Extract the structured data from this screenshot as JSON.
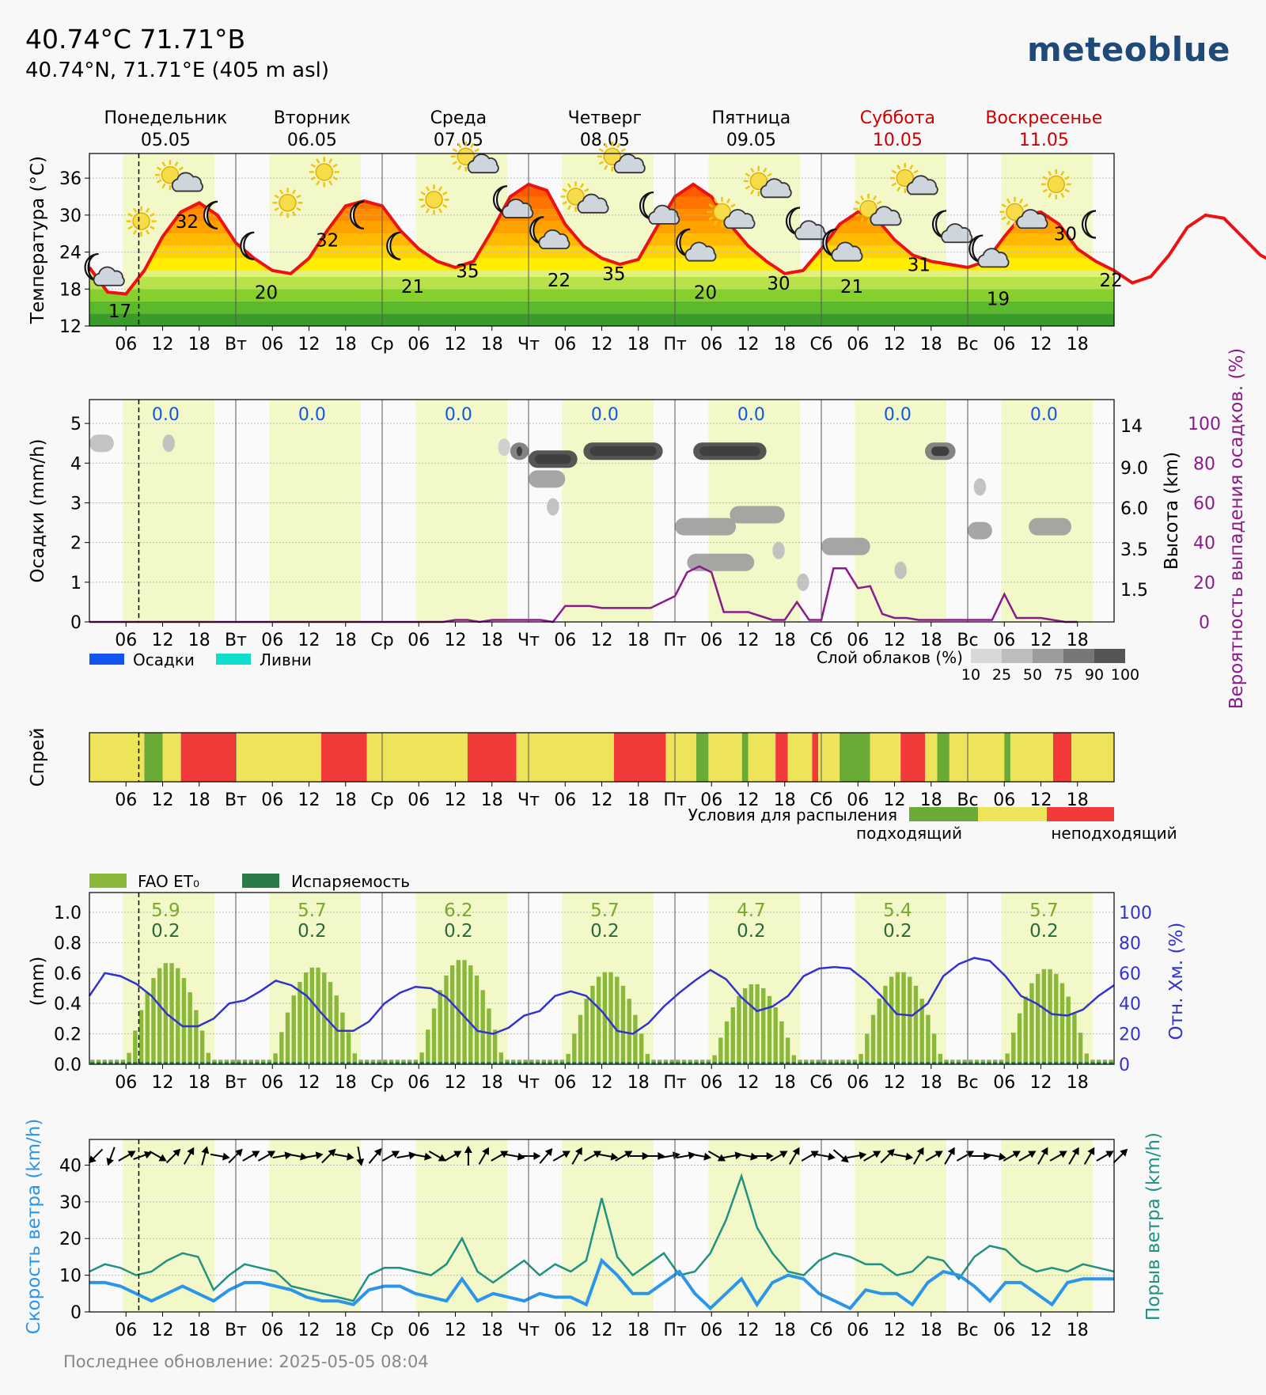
{
  "header": {
    "title": "40.74°C 71.71°B",
    "subtitle": "40.74°N, 71.71°E (405 m asl)",
    "logo": "meteoblue",
    "last_updated": "Последнее обновление: 2025-05-05 08:04"
  },
  "days": [
    {
      "name": "Понедельник",
      "date": "05.05",
      "weekend": false
    },
    {
      "name": "Вторник",
      "date": "06.05",
      "weekend": false
    },
    {
      "name": "Среда",
      "date": "07.05",
      "weekend": false
    },
    {
      "name": "Четверг",
      "date": "08.05",
      "weekend": false
    },
    {
      "name": "Пятница",
      "date": "09.05",
      "weekend": false
    },
    {
      "name": "Суббота",
      "date": "10.05",
      "weekend": true
    },
    {
      "name": "Воскресенье",
      "date": "11.05",
      "weekend": true
    }
  ],
  "time_axis": {
    "hour_ticks": [
      "06",
      "12",
      "18"
    ],
    "day_abbr": [
      "Вт",
      "Ср",
      "Чт",
      "Пт",
      "Сб",
      "Вс"
    ]
  },
  "colors": {
    "temperature": "#ee1111",
    "precip_prob": "#8b1a8b",
    "precipitation": "#1155ee",
    "showers": "#11ddcc",
    "fao": "#8ab83a",
    "evap": "#2a7a4a",
    "humidity": "#3333cc",
    "wind": "#2b95ea",
    "gust": "#1f9282",
    "spray_good": "#6aab38",
    "spray_mid": "#eee45a",
    "spray_bad": "#f23a3a",
    "weekend": "#cc0000"
  },
  "chart_data": [
    {
      "id": "temperature",
      "type": "area",
      "ylabel": "Температура (°C)",
      "ylim": [
        12,
        40
      ],
      "yticks": [
        12,
        18,
        24,
        30,
        36
      ],
      "x_start_hour": 0,
      "step_hours": 3,
      "values": [
        21.5,
        17.5,
        17.2,
        21,
        26.5,
        30.5,
        32,
        30,
        25.5,
        23,
        21,
        20.5,
        23,
        27.5,
        31.5,
        32.3,
        31.5,
        27.5,
        24.5,
        22.5,
        21.5,
        22.5,
        27.5,
        33,
        35,
        34,
        28.5,
        25,
        23,
        22,
        22.8,
        28,
        33,
        35,
        33,
        28.5,
        25,
        22.5,
        20.5,
        21,
        24.5,
        28.5,
        30.5,
        29.5,
        26,
        23.5,
        22.5,
        22,
        21.5,
        22.5,
        26.5,
        30,
        30.5,
        28.5,
        24.5,
        22.5,
        21,
        19,
        20,
        23.5,
        28,
        30,
        29.5,
        26.5,
        23.5,
        22
      ],
      "min_labels": [
        {
          "day": 0,
          "hour": 5,
          "value": "17"
        },
        {
          "day": 1,
          "hour": 5,
          "value": "20"
        },
        {
          "day": 2,
          "hour": 5,
          "value": "21"
        },
        {
          "day": 3,
          "hour": 5,
          "value": "22"
        },
        {
          "day": 4,
          "hour": 5,
          "value": "20"
        },
        {
          "day": 5,
          "hour": 5,
          "value": "21"
        },
        {
          "day": 6,
          "hour": 5,
          "value": "19"
        },
        {
          "day": 6,
          "hour": 23.5,
          "value": "22"
        }
      ],
      "max_labels": [
        {
          "day": 0,
          "hour": 16,
          "value": "32"
        },
        {
          "day": 1,
          "hour": 15,
          "value": "32"
        },
        {
          "day": 2,
          "hour": 14,
          "value": "35"
        },
        {
          "day": 3,
          "hour": 14,
          "value": "35"
        },
        {
          "day": 4,
          "hour": 17,
          "value": "30"
        },
        {
          "day": 5,
          "hour": 16,
          "value": "31"
        },
        {
          "day": 6,
          "hour": 16,
          "value": "30"
        }
      ],
      "icons": [
        {
          "name": "moon-cloud-icon",
          "day": 0,
          "hour": 1.5,
          "value": 21
        },
        {
          "name": "sun-icon",
          "day": 0,
          "hour": 8.5,
          "value": 29
        },
        {
          "name": "sun-cloud-icon",
          "day": 0,
          "hour": 14,
          "value": 36
        },
        {
          "name": "moon-icon",
          "day": 0,
          "hour": 20.5,
          "value": 30
        },
        {
          "name": "moon-icon",
          "day": 1,
          "hour": 2.5,
          "value": 25
        },
        {
          "name": "sun-icon",
          "day": 1,
          "hour": 8.5,
          "value": 32
        },
        {
          "name": "sun-icon",
          "day": 1,
          "hour": 14.5,
          "value": 37
        },
        {
          "name": "moon-icon",
          "day": 1,
          "hour": 20.5,
          "value": 30
        },
        {
          "name": "moon-icon",
          "day": 2,
          "hour": 2.5,
          "value": 25
        },
        {
          "name": "sun-icon",
          "day": 2,
          "hour": 8.5,
          "value": 32.5
        },
        {
          "name": "sun-cloud-icon",
          "day": 2,
          "hour": 14.5,
          "value": 39
        },
        {
          "name": "moon-cloud-icon",
          "day": 2,
          "hour": 20.5,
          "value": 32
        },
        {
          "name": "moon-cloud-icon",
          "day": 3,
          "hour": 2.5,
          "value": 27
        },
        {
          "name": "sun-cloud-icon",
          "day": 3,
          "hour": 8.5,
          "value": 32.5
        },
        {
          "name": "sun-cloud-icon",
          "day": 3,
          "hour": 14.5,
          "value": 39
        },
        {
          "name": "moon-cloud-icon",
          "day": 3,
          "hour": 20.5,
          "value": 31
        },
        {
          "name": "moon-cloud-icon",
          "day": 4,
          "hour": 2.5,
          "value": 25
        },
        {
          "name": "sun-cloud-icon",
          "day": 4,
          "hour": 8.5,
          "value": 30
        },
        {
          "name": "sun-cloud-icon",
          "day": 4,
          "hour": 14.5,
          "value": 35
        },
        {
          "name": "moon-cloud-icon",
          "day": 4,
          "hour": 20.5,
          "value": 28.5
        },
        {
          "name": "moon-cloud-icon",
          "day": 5,
          "hour": 2.5,
          "value": 25
        },
        {
          "name": "sun-cloud-icon",
          "day": 5,
          "hour": 8.5,
          "value": 30.5
        },
        {
          "name": "sun-cloud-icon",
          "day": 5,
          "hour": 14.5,
          "value": 35.5
        },
        {
          "name": "moon-cloud-icon",
          "day": 5,
          "hour": 20.5,
          "value": 28
        },
        {
          "name": "moon-cloud-icon",
          "day": 6,
          "hour": 2.5,
          "value": 24
        },
        {
          "name": "sun-cloud-icon",
          "day": 6,
          "hour": 8.5,
          "value": 30
        },
        {
          "name": "sun-icon",
          "day": 6,
          "hour": 14.5,
          "value": 35
        },
        {
          "name": "moon-icon",
          "day": 6,
          "hour": 20.5,
          "value": 28.5
        }
      ]
    },
    {
      "id": "precipitation",
      "type": "line",
      "ylabel": "Осадки (mm/h)",
      "ylim": [
        0,
        5.6
      ],
      "yticks": [
        0,
        1,
        2,
        3,
        4,
        5
      ],
      "height_label": "Высота (km)",
      "height_ticks": [
        "1.5",
        "3.5",
        "6.0",
        "9.0",
        "14"
      ],
      "prob_label": "Вероятность выпадения осадков. (%)",
      "prob_ticks": [
        0,
        20,
        40,
        60,
        80,
        100
      ],
      "daily_totals": [
        "0.0",
        "0.0",
        "0.0",
        "0.0",
        "0.0",
        "0.0",
        "0.0"
      ],
      "legend": {
        "precip": "Осадки",
        "showers": "Ливни"
      },
      "cloud_legend_title": "Слой облаков (%)",
      "cloud_legend_ticks": [
        "10",
        "25",
        "50",
        "75",
        "90",
        "100"
      ],
      "cloud_layers": [
        {
          "day": 0,
          "h0": 0,
          "h1": 4,
          "level": 4.5,
          "cover": 25
        },
        {
          "day": 0,
          "h0": 12,
          "h1": 14,
          "level": 4.5,
          "cover": 25
        },
        {
          "day": 2,
          "h0": 19,
          "h1": 21,
          "level": 4.4,
          "cover": 15
        },
        {
          "day": 2,
          "h0": 21,
          "h1": 24,
          "level": 4.3,
          "cover": 75
        },
        {
          "day": 3,
          "h0": 0,
          "h1": 8,
          "level": 4.1,
          "cover": 100
        },
        {
          "day": 3,
          "h0": 0,
          "h1": 6,
          "level": 3.6,
          "cover": 50
        },
        {
          "day": 3,
          "h0": 9,
          "h1": 22,
          "level": 4.3,
          "cover": 100
        },
        {
          "day": 3,
          "h0": 3,
          "h1": 5,
          "level": 2.9,
          "cover": 25
        },
        {
          "day": 4,
          "h0": 3,
          "h1": 15,
          "level": 4.3,
          "cover": 100
        },
        {
          "day": 4,
          "h0": 0,
          "h1": 10,
          "level": 2.4,
          "cover": 50
        },
        {
          "day": 4,
          "h0": 9,
          "h1": 18,
          "level": 2.7,
          "cover": 50
        },
        {
          "day": 4,
          "h0": 2,
          "h1": 13,
          "level": 1.5,
          "cover": 50
        },
        {
          "day": 4,
          "h0": 16,
          "h1": 18,
          "level": 1.8,
          "cover": 25
        },
        {
          "day": 4,
          "h0": 20,
          "h1": 22,
          "level": 1.0,
          "cover": 25
        },
        {
          "day": 5,
          "h0": 0,
          "h1": 8,
          "level": 1.9,
          "cover": 50
        },
        {
          "day": 5,
          "h0": 12,
          "h1": 14,
          "level": 1.3,
          "cover": 25
        },
        {
          "day": 5,
          "h0": 17,
          "h1": 22,
          "level": 4.3,
          "cover": 75
        },
        {
          "day": 6,
          "h0": 0,
          "h1": 4,
          "level": 2.3,
          "cover": 50
        },
        {
          "day": 6,
          "h0": 1,
          "h1": 3,
          "level": 3.4,
          "cover": 25
        },
        {
          "day": 6,
          "h0": 10,
          "h1": 17,
          "level": 2.4,
          "cover": 50
        }
      ],
      "prob_x_start_hour": 0,
      "prob_step_hours": 3,
      "prob_values": [
        0,
        0,
        0,
        0,
        0,
        0,
        0,
        0,
        0,
        0,
        0,
        0,
        0,
        0,
        0,
        0,
        0,
        0,
        0,
        0,
        0,
        0,
        0,
        0,
        0,
        0,
        0,
        0,
        0,
        0,
        1,
        1,
        0,
        1,
        1,
        1,
        1,
        1,
        0,
        8,
        8,
        8,
        7,
        7,
        7,
        7,
        7,
        10,
        13,
        25,
        28,
        25,
        5,
        5,
        5,
        3,
        1,
        1,
        10,
        1,
        1,
        27,
        27,
        17,
        18,
        4,
        2,
        2,
        1,
        1,
        1,
        1,
        1,
        1,
        1,
        14,
        2,
        2,
        2,
        1,
        0,
        0
      ]
    },
    {
      "id": "spray",
      "type": "heatmap",
      "ylabel": "Спрей",
      "legend_title": "Условия для распыления",
      "legend_good": "подходящий",
      "legend_bad": "неподходящий",
      "segments": [
        {
          "from": 0,
          "to": 9,
          "rating": "mid"
        },
        {
          "from": 9,
          "to": 12,
          "rating": "good"
        },
        {
          "from": 12,
          "to": 15,
          "rating": "mid"
        },
        {
          "from": 15,
          "to": 24,
          "rating": "bad"
        },
        {
          "from": 24,
          "to": 38,
          "rating": "mid"
        },
        {
          "from": 38,
          "to": 45.5,
          "rating": "bad"
        },
        {
          "from": 45.5,
          "to": 62,
          "rating": "mid"
        },
        {
          "from": 62,
          "to": 70,
          "rating": "bad"
        },
        {
          "from": 70,
          "to": 86,
          "rating": "mid"
        },
        {
          "from": 86,
          "to": 94.5,
          "rating": "bad"
        },
        {
          "from": 94.5,
          "to": 99.5,
          "rating": "mid"
        },
        {
          "from": 99.5,
          "to": 101.5,
          "rating": "good"
        },
        {
          "from": 101.5,
          "to": 107,
          "rating": "mid"
        },
        {
          "from": 107,
          "to": 108,
          "rating": "good"
        },
        {
          "from": 108,
          "to": 112.5,
          "rating": "mid"
        },
        {
          "from": 112.5,
          "to": 114.5,
          "rating": "bad"
        },
        {
          "from": 114.5,
          "to": 118.5,
          "rating": "mid"
        },
        {
          "from": 118.5,
          "to": 119.5,
          "rating": "bad"
        },
        {
          "from": 119.5,
          "to": 123,
          "rating": "mid"
        },
        {
          "from": 123,
          "to": 128,
          "rating": "good"
        },
        {
          "from": 128,
          "to": 133,
          "rating": "mid"
        },
        {
          "from": 133,
          "to": 137,
          "rating": "bad"
        },
        {
          "from": 137,
          "to": 139,
          "rating": "mid"
        },
        {
          "from": 139,
          "to": 141,
          "rating": "good"
        },
        {
          "from": 141,
          "to": 150,
          "rating": "mid"
        },
        {
          "from": 150,
          "to": 151,
          "rating": "good"
        },
        {
          "from": 151,
          "to": 158,
          "rating": "mid"
        },
        {
          "from": 158,
          "to": 161,
          "rating": "bad"
        },
        {
          "from": 161,
          "to": 168,
          "rating": "mid"
        }
      ]
    },
    {
      "id": "evapotranspiration",
      "type": "bar",
      "ylabel": "(mm)",
      "ylim": [
        0,
        1.0
      ],
      "yticks": [
        "0.0",
        "0.2",
        "0.4",
        "0.6",
        "0.8",
        "1.0"
      ],
      "rh_label": "Отн. Хм. (%)",
      "rh_ticks": [
        0,
        20,
        40,
        60,
        80,
        100
      ],
      "legend": {
        "fao": "FAO ET₀",
        "evap": "Испаряемость"
      },
      "daily_fao": [
        "5.9",
        "5.7",
        "6.2",
        "5.7",
        "4.7",
        "5.4",
        "5.7"
      ],
      "daily_evap": [
        "0.2",
        "0.2",
        "0.2",
        "0.2",
        "0.2",
        "0.2",
        "0.2"
      ],
      "day_peaks": [
        0.67,
        0.64,
        0.69,
        0.61,
        0.53,
        0.61,
        0.63
      ],
      "rh_x_start_hour": 0,
      "rh_step_hours": 3,
      "rh_values": [
        45,
        60,
        58,
        53,
        45,
        33,
        25,
        25,
        30,
        40,
        42,
        48,
        55,
        52,
        45,
        33,
        22,
        22,
        28,
        40,
        47,
        51,
        50,
        44,
        33,
        22,
        20,
        24,
        32,
        35,
        45,
        48,
        45,
        35,
        22,
        20,
        27,
        38,
        47,
        55,
        62,
        56,
        44,
        35,
        38,
        45,
        58,
        63,
        64,
        63,
        55,
        45,
        33,
        32,
        40,
        58,
        66,
        70,
        68,
        58,
        45,
        40,
        33,
        32,
        36,
        45,
        52
      ]
    },
    {
      "id": "wind",
      "type": "line",
      "ylabel": "Скорость ветра (km/h)",
      "ylim": [
        0,
        47
      ],
      "yticks": [
        0,
        10,
        20,
        30,
        40
      ],
      "gust_label": "Порыв ветра (km/h)",
      "x_start_hour": 0,
      "step_hours": 3,
      "speed": [
        8,
        8,
        7,
        5,
        3,
        5,
        7,
        5,
        3,
        6,
        8,
        8,
        7,
        6,
        4,
        3,
        3,
        2,
        6,
        7,
        7,
        5,
        4,
        3,
        9,
        3,
        5,
        4,
        3,
        5,
        4,
        4,
        2,
        14,
        10,
        5,
        5,
        8,
        11,
        5,
        1,
        5,
        9,
        2,
        8,
        10,
        9,
        5,
        3,
        1,
        6,
        5,
        5,
        2,
        8,
        11,
        10,
        7,
        3,
        8,
        8,
        5,
        2,
        8,
        9,
        9,
        9
      ],
      "gust": [
        11,
        13,
        12,
        10,
        11,
        14,
        16,
        15,
        6,
        10,
        13,
        12,
        11,
        7,
        6,
        5,
        4,
        3,
        10,
        12,
        12,
        11,
        10,
        13,
        20,
        11,
        8,
        11,
        14,
        10,
        13,
        11,
        14,
        31,
        15,
        10,
        13,
        16,
        10,
        11,
        16,
        25,
        37,
        23,
        16,
        11,
        10,
        14,
        16,
        15,
        13,
        13,
        10,
        11,
        15,
        14,
        9,
        15,
        18,
        17,
        13,
        11,
        12,
        11,
        13,
        12,
        11
      ],
      "wind_dirs_deg": [
        225,
        200,
        60,
        70,
        120,
        45,
        30,
        15,
        100,
        45,
        60,
        60,
        80,
        100,
        80,
        45,
        100,
        170,
        40,
        60,
        80,
        100,
        120,
        60,
        0,
        30,
        60,
        100,
        90,
        40,
        60,
        30,
        60,
        100,
        60,
        90,
        90,
        80,
        80,
        100,
        120,
        80,
        100,
        90,
        60,
        30,
        60,
        100,
        130,
        80,
        60,
        45,
        100,
        30,
        60,
        30,
        60,
        90,
        100,
        60,
        60,
        30,
        60,
        30,
        30,
        60,
        45
      ]
    }
  ]
}
